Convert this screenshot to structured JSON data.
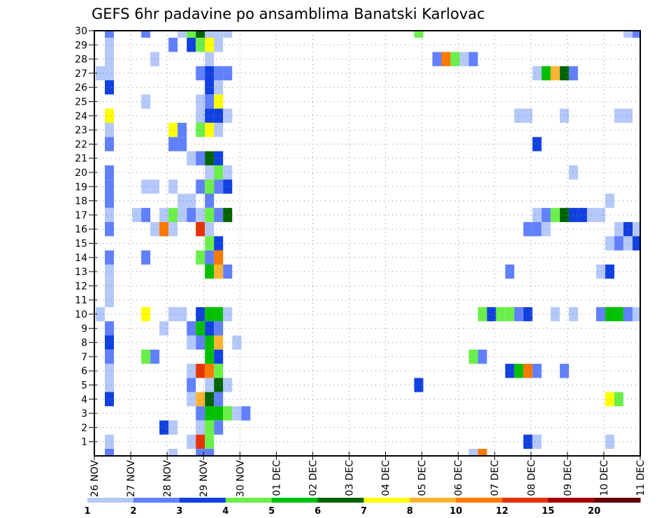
{
  "chart_data": {
    "type": "heatmap",
    "title": "GEFS 6hr padavine po ansamblima Banatski Karlovac",
    "xlabel": "",
    "ylabel": "",
    "x_unit": "6-hour step from 26 NOV",
    "x_tick_labels": [
      "26 NOV",
      "27 NOV",
      "28 NOV",
      "29 NOV",
      "30 NOV",
      "01 DEC",
      "02 DEC",
      "03 DEC",
      "04 DEC",
      "05 DEC",
      "06 DEC",
      "07 DEC",
      "08 DEC",
      "09 DEC",
      "10 DEC",
      "11 DEC"
    ],
    "xlim": [
      0,
      60
    ],
    "y_tick_labels": [
      "1",
      "2",
      "3",
      "4",
      "5",
      "6",
      "7",
      "8",
      "9",
      "10",
      "11",
      "12",
      "13",
      "14",
      "15",
      "16",
      "17",
      "18",
      "19",
      "20",
      "21",
      "22",
      "23",
      "24",
      "25",
      "26",
      "27",
      "28",
      "29",
      "30"
    ],
    "ylim": [
      0,
      30
    ],
    "grid": true,
    "colorbar": {
      "placement": "bottom",
      "labels": [
        "1",
        "2",
        "3",
        "4",
        "5",
        "6",
        "7",
        "8",
        "10",
        "12",
        "15",
        "20"
      ],
      "colors": [
        "#b4c8fa",
        "#6080ff",
        "#1040e0",
        "#6af048",
        "#00c000",
        "#006400",
        "#ffff00",
        "#ffb432",
        "#ff7800",
        "#e63200",
        "#a50000",
        "#640000"
      ]
    },
    "cells_note": "each cell: [time step, ensemble member, color class index 0-11]",
    "cells": [
      [
        1,
        30,
        1
      ],
      [
        5,
        30,
        1
      ],
      [
        9,
        30,
        0
      ],
      [
        10,
        30,
        3
      ],
      [
        11,
        30,
        5
      ],
      [
        12,
        30,
        0
      ],
      [
        13,
        30,
        0
      ],
      [
        14,
        30,
        0
      ],
      [
        35,
        30,
        3
      ],
      [
        58,
        30,
        0
      ],
      [
        59,
        30,
        1
      ],
      [
        1,
        29,
        0
      ],
      [
        8,
        29,
        1
      ],
      [
        10,
        29,
        2
      ],
      [
        11,
        29,
        3
      ],
      [
        12,
        29,
        6
      ],
      [
        13,
        29,
        0
      ],
      [
        1,
        28,
        0
      ],
      [
        6,
        28,
        0
      ],
      [
        12,
        28,
        0
      ],
      [
        37,
        28,
        1
      ],
      [
        38,
        28,
        8
      ],
      [
        39,
        28,
        3
      ],
      [
        40,
        28,
        0
      ],
      [
        41,
        28,
        1
      ],
      [
        0,
        27,
        0
      ],
      [
        1,
        27,
        0
      ],
      [
        11,
        27,
        1
      ],
      [
        12,
        27,
        2
      ],
      [
        13,
        27,
        1
      ],
      [
        14,
        27,
        1
      ],
      [
        48,
        27,
        0
      ],
      [
        49,
        27,
        4
      ],
      [
        50,
        27,
        7
      ],
      [
        51,
        27,
        5
      ],
      [
        52,
        27,
        1
      ],
      [
        1,
        26,
        2
      ],
      [
        12,
        26,
        2
      ],
      [
        13,
        26,
        0
      ],
      [
        5,
        25,
        0
      ],
      [
        11,
        25,
        0
      ],
      [
        12,
        25,
        1
      ],
      [
        13,
        25,
        6
      ],
      [
        1,
        24,
        6
      ],
      [
        11,
        24,
        0
      ],
      [
        12,
        24,
        2
      ],
      [
        13,
        24,
        2
      ],
      [
        14,
        24,
        0
      ],
      [
        46,
        24,
        0
      ],
      [
        47,
        24,
        0
      ],
      [
        51,
        24,
        0
      ],
      [
        57,
        24,
        0
      ],
      [
        58,
        24,
        0
      ],
      [
        1,
        23,
        0
      ],
      [
        8,
        23,
        6
      ],
      [
        9,
        23,
        1
      ],
      [
        11,
        23,
        3
      ],
      [
        12,
        23,
        6
      ],
      [
        13,
        23,
        0
      ],
      [
        1,
        22,
        1
      ],
      [
        8,
        22,
        1
      ],
      [
        9,
        22,
        1
      ],
      [
        48,
        22,
        2
      ],
      [
        10,
        21,
        0
      ],
      [
        11,
        21,
        1
      ],
      [
        12,
        21,
        5
      ],
      [
        13,
        21,
        2
      ],
      [
        1,
        20,
        1
      ],
      [
        12,
        20,
        0
      ],
      [
        13,
        20,
        3
      ],
      [
        14,
        20,
        0
      ],
      [
        52,
        20,
        0
      ],
      [
        1,
        19,
        1
      ],
      [
        5,
        19,
        0
      ],
      [
        6,
        19,
        0
      ],
      [
        8,
        19,
        0
      ],
      [
        11,
        19,
        1
      ],
      [
        12,
        19,
        3
      ],
      [
        13,
        19,
        1
      ],
      [
        14,
        19,
        2
      ],
      [
        1,
        18,
        1
      ],
      [
        9,
        18,
        0
      ],
      [
        10,
        18,
        0
      ],
      [
        12,
        18,
        1
      ],
      [
        56,
        18,
        0
      ],
      [
        1,
        17,
        0
      ],
      [
        4,
        17,
        0
      ],
      [
        5,
        17,
        1
      ],
      [
        7,
        17,
        0
      ],
      [
        8,
        17,
        3
      ],
      [
        9,
        17,
        0
      ],
      [
        10,
        17,
        1
      ],
      [
        11,
        17,
        0
      ],
      [
        12,
        17,
        3
      ],
      [
        13,
        17,
        1
      ],
      [
        14,
        17,
        5
      ],
      [
        48,
        17,
        0
      ],
      [
        49,
        17,
        1
      ],
      [
        50,
        17,
        3
      ],
      [
        51,
        17,
        5
      ],
      [
        52,
        17,
        2
      ],
      [
        53,
        17,
        2
      ],
      [
        54,
        17,
        0
      ],
      [
        55,
        17,
        0
      ],
      [
        1,
        16,
        1
      ],
      [
        6,
        16,
        0
      ],
      [
        7,
        16,
        8
      ],
      [
        8,
        16,
        0
      ],
      [
        11,
        16,
        9
      ],
      [
        12,
        16,
        0
      ],
      [
        47,
        16,
        1
      ],
      [
        48,
        16,
        1
      ],
      [
        49,
        16,
        0
      ],
      [
        57,
        16,
        0
      ],
      [
        58,
        16,
        2
      ],
      [
        59,
        16,
        0
      ],
      [
        12,
        15,
        3
      ],
      [
        13,
        15,
        2
      ],
      [
        56,
        15,
        0
      ],
      [
        57,
        15,
        1
      ],
      [
        58,
        15,
        0
      ],
      [
        59,
        15,
        2
      ],
      [
        1,
        14,
        1
      ],
      [
        5,
        14,
        1
      ],
      [
        11,
        14,
        3
      ],
      [
        12,
        14,
        1
      ],
      [
        13,
        14,
        8
      ],
      [
        1,
        13,
        0
      ],
      [
        12,
        13,
        4
      ],
      [
        13,
        13,
        7
      ],
      [
        14,
        13,
        1
      ],
      [
        45,
        13,
        1
      ],
      [
        55,
        13,
        0
      ],
      [
        56,
        13,
        2
      ],
      [
        1,
        12,
        0
      ],
      [
        1,
        11,
        0
      ],
      [
        0,
        10,
        0
      ],
      [
        5,
        10,
        6
      ],
      [
        8,
        10,
        0
      ],
      [
        9,
        10,
        0
      ],
      [
        11,
        10,
        2
      ],
      [
        12,
        10,
        4
      ],
      [
        13,
        10,
        4
      ],
      [
        14,
        10,
        0
      ],
      [
        42,
        10,
        3
      ],
      [
        43,
        10,
        2
      ],
      [
        44,
        10,
        3
      ],
      [
        45,
        10,
        3
      ],
      [
        46,
        10,
        1
      ],
      [
        47,
        10,
        2
      ],
      [
        50,
        10,
        0
      ],
      [
        52,
        10,
        0
      ],
      [
        55,
        10,
        1
      ],
      [
        56,
        10,
        4
      ],
      [
        57,
        10,
        4
      ],
      [
        58,
        10,
        1
      ],
      [
        59,
        10,
        0
      ],
      [
        1,
        9,
        1
      ],
      [
        7,
        9,
        0
      ],
      [
        10,
        9,
        1
      ],
      [
        11,
        9,
        4
      ],
      [
        12,
        9,
        2
      ],
      [
        13,
        9,
        1
      ],
      [
        1,
        8,
        2
      ],
      [
        10,
        8,
        0
      ],
      [
        11,
        8,
        1
      ],
      [
        12,
        8,
        4
      ],
      [
        13,
        8,
        7
      ],
      [
        15,
        8,
        0
      ],
      [
        1,
        7,
        1
      ],
      [
        5,
        7,
        3
      ],
      [
        6,
        7,
        1
      ],
      [
        12,
        7,
        4
      ],
      [
        13,
        7,
        2
      ],
      [
        41,
        7,
        3
      ],
      [
        42,
        7,
        1
      ],
      [
        1,
        6,
        0
      ],
      [
        10,
        6,
        0
      ],
      [
        11,
        6,
        9
      ],
      [
        12,
        6,
        8
      ],
      [
        13,
        6,
        3
      ],
      [
        45,
        6,
        2
      ],
      [
        46,
        6,
        4
      ],
      [
        47,
        6,
        8
      ],
      [
        48,
        6,
        1
      ],
      [
        51,
        6,
        1
      ],
      [
        1,
        5,
        0
      ],
      [
        10,
        5,
        1
      ],
      [
        12,
        5,
        0
      ],
      [
        13,
        5,
        5
      ],
      [
        14,
        5,
        0
      ],
      [
        35,
        5,
        2
      ],
      [
        1,
        4,
        2
      ],
      [
        10,
        4,
        0
      ],
      [
        11,
        4,
        7
      ],
      [
        12,
        4,
        5
      ],
      [
        13,
        4,
        1
      ],
      [
        56,
        4,
        6
      ],
      [
        57,
        4,
        3
      ],
      [
        11,
        3,
        1
      ],
      [
        12,
        3,
        4
      ],
      [
        13,
        3,
        4
      ],
      [
        14,
        3,
        3
      ],
      [
        15,
        3,
        0
      ],
      [
        16,
        3,
        1
      ],
      [
        7,
        2,
        2
      ],
      [
        8,
        2,
        0
      ],
      [
        11,
        2,
        0
      ],
      [
        12,
        2,
        3
      ],
      [
        13,
        2,
        1
      ],
      [
        1,
        1,
        0
      ],
      [
        10,
        1,
        0
      ],
      [
        11,
        1,
        9
      ],
      [
        12,
        1,
        3
      ],
      [
        47,
        1,
        2
      ],
      [
        48,
        1,
        0
      ],
      [
        56,
        1,
        0
      ],
      [
        1,
        0,
        1
      ],
      [
        8,
        0,
        0
      ],
      [
        11,
        0,
        1
      ],
      [
        12,
        0,
        1
      ],
      [
        41,
        0,
        0
      ],
      [
        42,
        0,
        8
      ]
    ]
  }
}
